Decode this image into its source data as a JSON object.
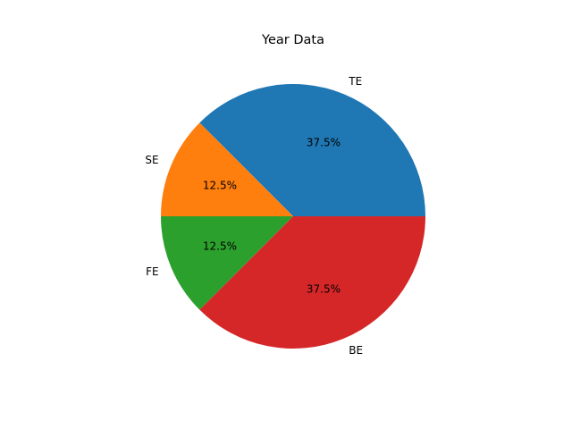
{
  "chart_data": {
    "type": "pie",
    "title": "Year Data",
    "categories": [
      "TE",
      "SE",
      "FE",
      "BE"
    ],
    "values": [
      37.5,
      12.5,
      12.5,
      37.5
    ],
    "percent_labels": [
      "37.5%",
      "12.5%",
      "12.5%",
      "37.5%"
    ],
    "colors": [
      "#1f77b4",
      "#ff7f0e",
      "#2ca02c",
      "#d62728"
    ],
    "start_angle_deg": 0,
    "direction": "counterclockwise",
    "legend": "none"
  }
}
